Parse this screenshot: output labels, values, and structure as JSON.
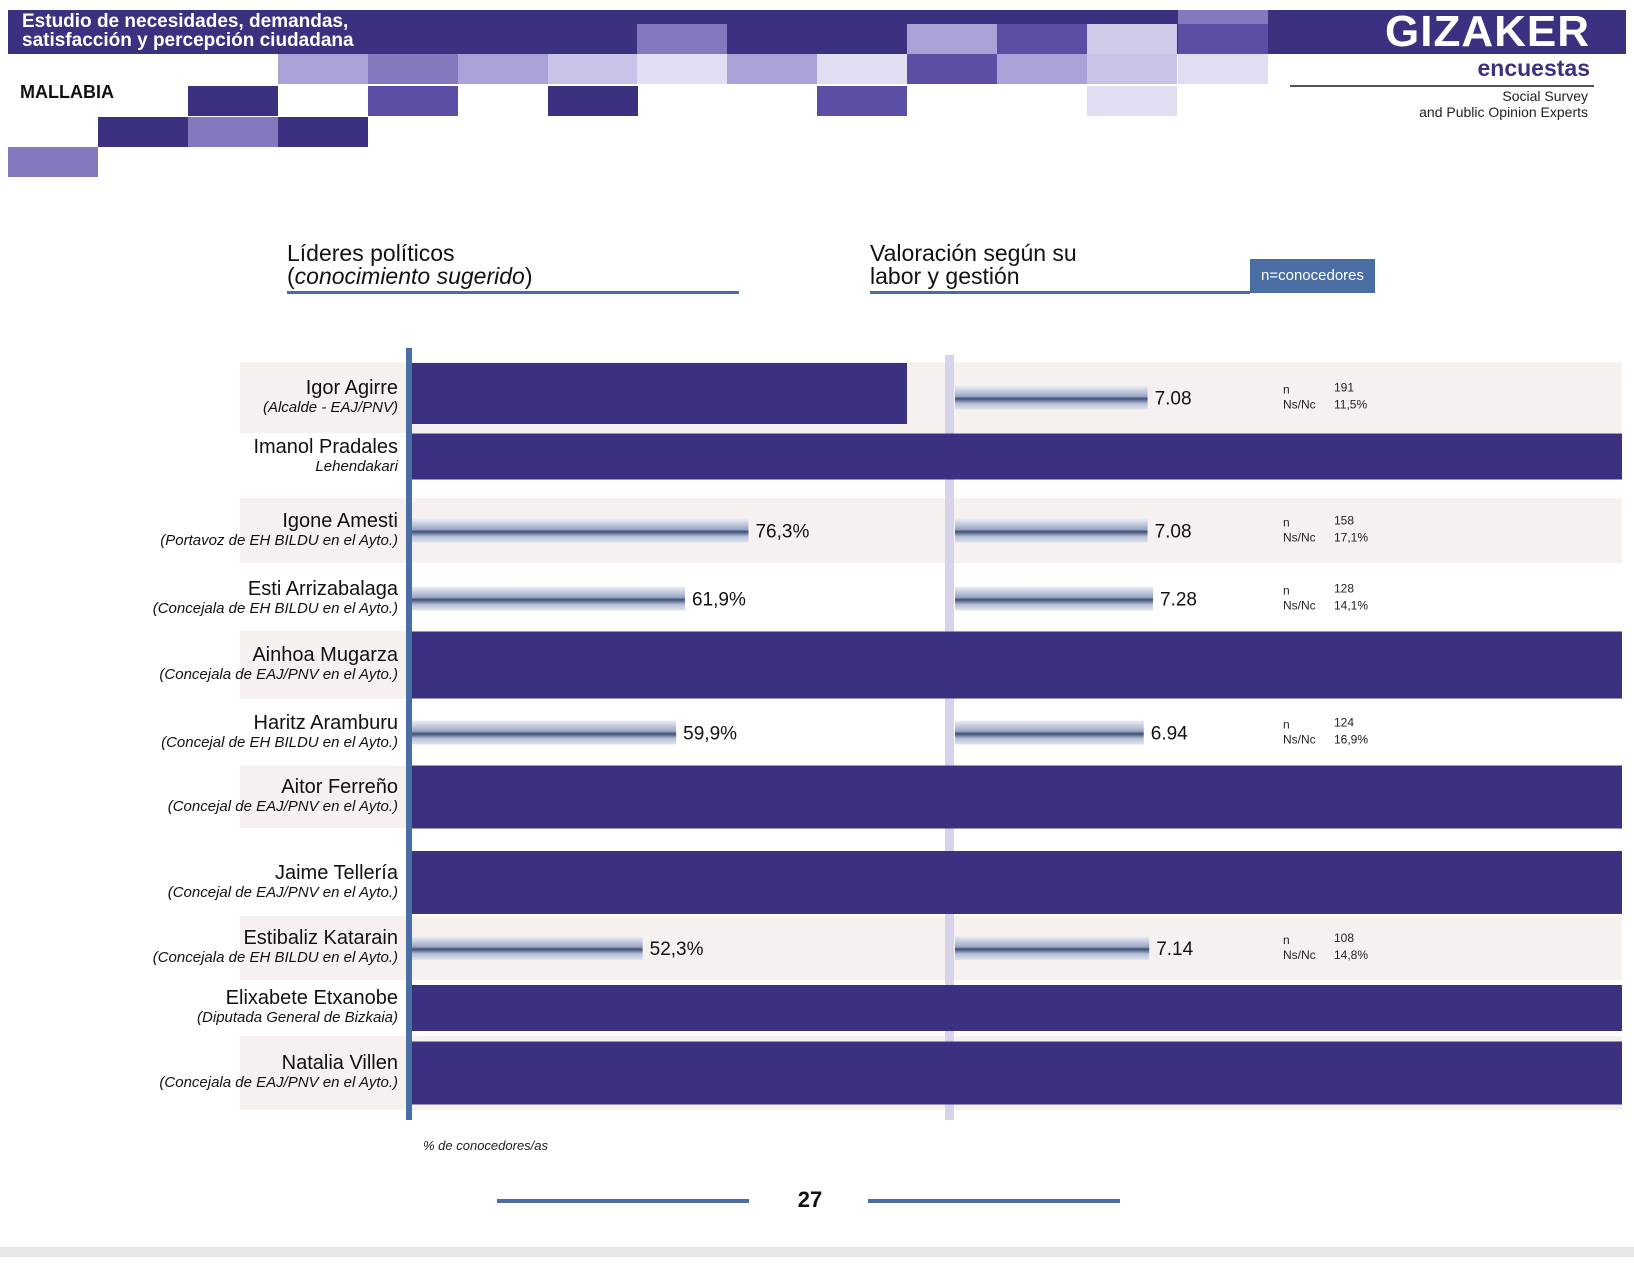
{
  "header": {
    "title_line1": "Estudio de necesidades, demandas,",
    "title_line2": "satisfacción y percepción ciudadana",
    "municipality": "MALLABIA",
    "brand_name": "GIZAKER",
    "brand_sub": "encuestas",
    "brand_tag1": "Social Survey",
    "brand_tag2": "and Public Opinion Experts"
  },
  "sections": {
    "left_title_line1": "Líderes políticos",
    "left_title_paren_open": "(",
    "left_title_italic": "conocimiento sugerido",
    "left_title_paren_close": ")",
    "right_title_line1": "Valoración según su",
    "right_title_line2": "labor y gestión",
    "badge": "n=conocedores"
  },
  "footer": {
    "axis_caption": "% de conocedores/as",
    "page_number": "27"
  },
  "colors": {
    "dark_bar": "#3a3280",
    "row_shade": "#f6f1ef",
    "accent_blue": "#4a6ea3",
    "divider_light": "#d6d3ea"
  },
  "chart_data": {
    "type": "bar",
    "orientation": "horizontal",
    "categories": [
      "Igor Agirre",
      "Imanol Pradales",
      "Igone Amesti",
      "Esti Arrizabalaga",
      "Ainhoa Mugarza",
      "Haritz Aramburu",
      "Aitor Ferreño",
      "Jaime Tellería",
      "Estibaliz Katarain",
      "Elixabete Etxanobe",
      "Natalia Villen"
    ],
    "roles": [
      "(Alcalde - EAJ/PNV)",
      "Lehendakari",
      "(Portavoz de EH BILDU en el Ayto.)",
      "(Concejala de EH BILDU en el Ayto.)",
      "(Concejala de EAJ/PNV en el Ayto.)",
      "(Concejal de EH BILDU en el Ayto.)",
      "(Concejal de EAJ/PNV en el Ayto.)",
      "(Concejal de EAJ/PNV en el Ayto.)",
      "(Concejala de EH BILDU en el Ayto.)",
      "(Diputada General de Bizkaia)",
      "(Concejala de EAJ/PNV en el Ayto.)"
    ],
    "knowledge_pct": [
      null,
      null,
      76.3,
      61.9,
      null,
      59.9,
      null,
      null,
      52.3,
      null,
      null
    ],
    "knowledge_labels": [
      "",
      "",
      "76,3%",
      "61,9%",
      "",
      "59,9%",
      "",
      "",
      "52,3%",
      "",
      ""
    ],
    "rating": [
      7.08,
      null,
      7.08,
      7.28,
      null,
      6.94,
      null,
      null,
      7.14,
      null,
      null
    ],
    "rating_labels": [
      "7.08",
      "",
      "7.08",
      "7.28",
      "",
      "6.94",
      "",
      "",
      "7.14",
      "",
      ""
    ],
    "n": [
      "191",
      "",
      "158",
      "128",
      "",
      "124",
      "",
      "",
      "108",
      "",
      ""
    ],
    "nsnc": [
      "11,5%",
      "",
      "17,1%",
      "14,1%",
      "",
      "16,9%",
      "",
      "",
      "14,8%",
      "",
      ""
    ],
    "n_label": "n",
    "nsnc_label": "Ns/Nc",
    "shaded_rows": [
      0,
      2,
      4,
      6,
      8,
      10
    ],
    "redacted_rows": [
      1,
      4,
      6,
      7,
      9,
      10
    ],
    "igor_agirre_bar_redacted": true,
    "left_xlim": [
      0,
      100
    ],
    "right_xlim": [
      0,
      10
    ],
    "xlabel": "% de conocedores/as",
    "grid": false
  }
}
